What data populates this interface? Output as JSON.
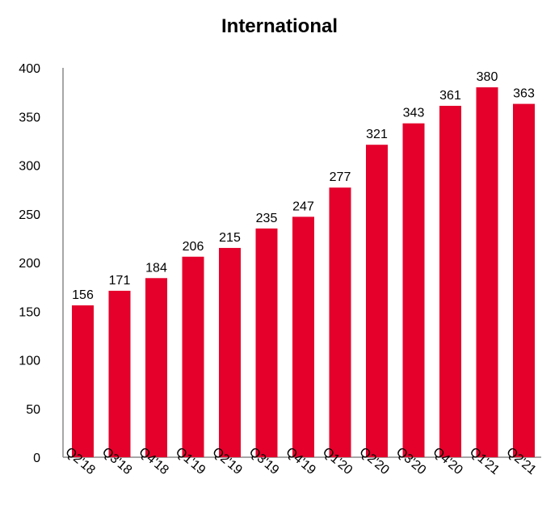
{
  "chart_data": {
    "type": "bar",
    "title": "International",
    "categories": [
      "Q2'18",
      "Q3'18",
      "Q4'18",
      "Q1'19",
      "Q2'19",
      "Q3'19",
      "Q4'19",
      "Q1'20",
      "Q2'20",
      "Q3'20",
      "Q4'20",
      "Q1'21",
      "Q2'21"
    ],
    "values": [
      156,
      171,
      184,
      206,
      215,
      235,
      247,
      277,
      321,
      343,
      361,
      380,
      363
    ],
    "ylim": [
      0,
      400
    ],
    "yticks": [
      0,
      50,
      100,
      150,
      200,
      250,
      300,
      350,
      400
    ],
    "grid": false,
    "legend": "none",
    "bar_color": "#e4002b",
    "axis_color": "#888888"
  }
}
